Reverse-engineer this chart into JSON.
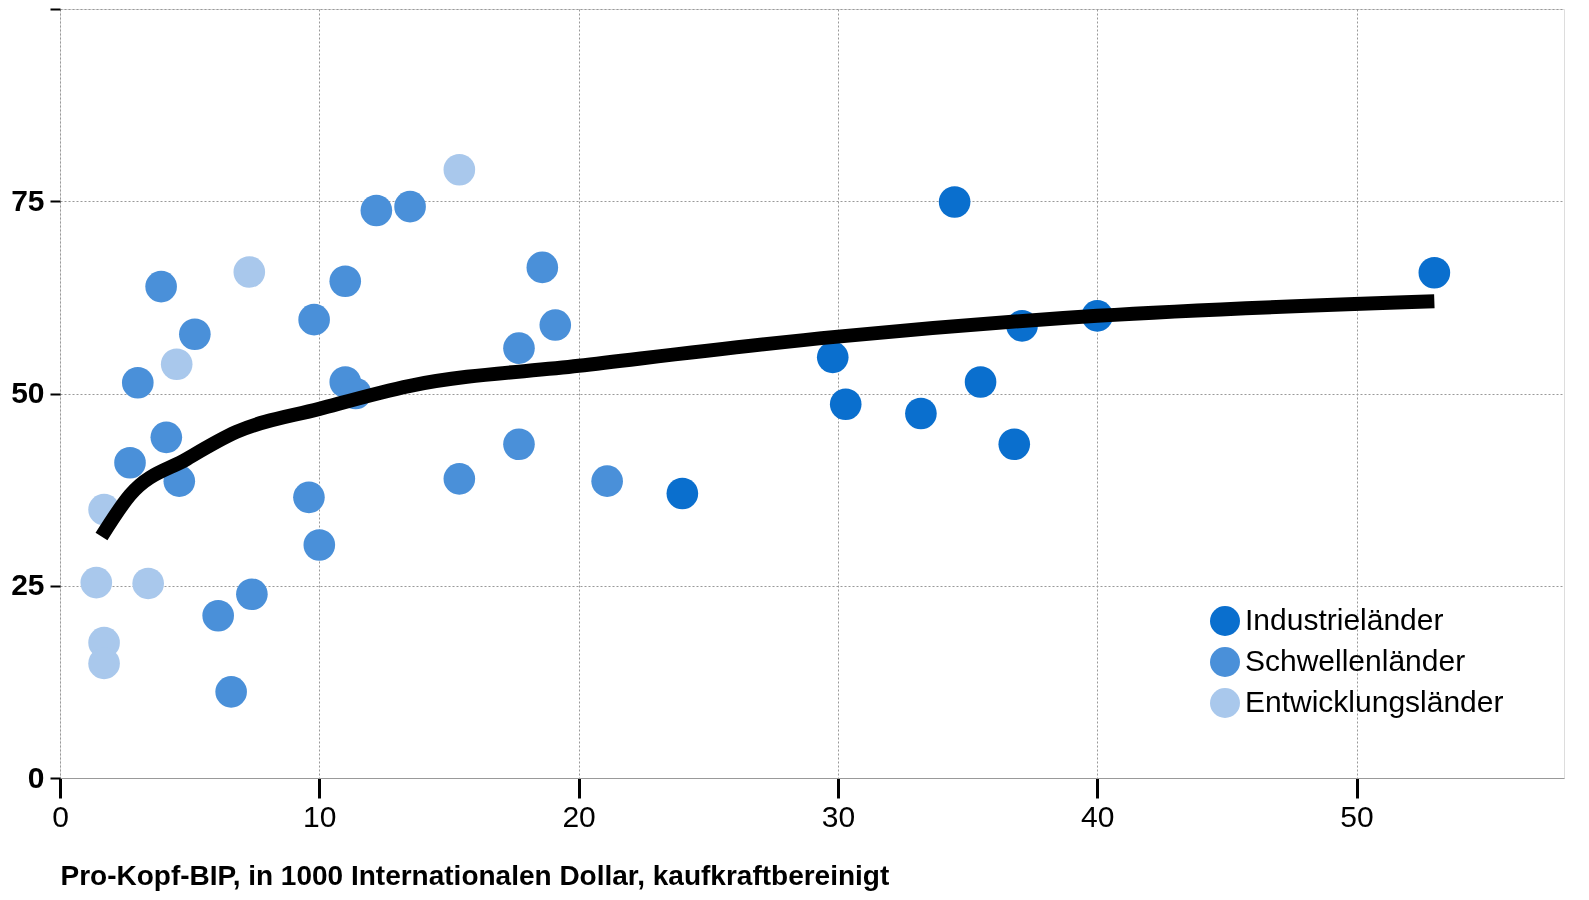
{
  "chart_data": {
    "type": "scatter",
    "xlabel": "Pro-Kopf-BIP, in 1000 Internationalen Dollar, kaufkraftbereinigt",
    "xlim": [
      0,
      58
    ],
    "xticks": [
      0,
      10,
      20,
      30,
      40,
      50
    ],
    "ylim": [
      0,
      100
    ],
    "yticks": [
      0,
      25,
      50,
      75,
      {
        "value": 100,
        "label": null
      }
    ],
    "grid": true,
    "legend": "bottom right",
    "marker": "circle",
    "series": [
      {
        "name": "Industrieländer",
        "color": "#0a6fce",
        "x": [
          34.5,
          53.0,
          40.0,
          37.1,
          29.8,
          35.5,
          30.3,
          33.2,
          36.8,
          24.0
        ],
        "values": [
          74.9,
          65.7,
          60.1,
          58.8,
          54.7,
          51.5,
          48.6,
          47.4,
          43.4,
          37.0
        ]
      },
      {
        "name": "Schwellenländer",
        "color": "#4a90d9",
        "x": [
          12.2,
          13.5,
          3.9,
          11.0,
          18.6,
          9.8,
          19.1,
          5.2,
          17.7,
          3.0,
          11.0,
          11.4,
          4.1,
          2.7,
          4.6,
          17.7,
          15.4,
          21.1,
          9.6,
          10.0,
          7.4,
          6.1,
          6.6
        ],
        "values": [
          73.8,
          74.3,
          63.9,
          64.6,
          66.4,
          59.6,
          58.9,
          57.7,
          55.9,
          51.4,
          51.5,
          50.0,
          44.3,
          41.0,
          38.6,
          43.4,
          38.9,
          38.6,
          36.5,
          30.3,
          23.9,
          21.1,
          11.2
        ]
      },
      {
        "name": "Entwicklungsländer",
        "color": "#a9c8ec",
        "x": [
          15.4,
          7.3,
          4.5,
          1.7,
          1.4,
          3.4,
          1.7,
          1.7
        ],
        "values": [
          79.1,
          65.8,
          53.8,
          34.9,
          25.4,
          25.3,
          17.6,
          14.9
        ]
      },
      {
        "type": "line",
        "color": "#000000",
        "marker": "none",
        "x": [
          1.6,
          2.7,
          4.9,
          6.8,
          10,
          13.5,
          20,
          30,
          40,
          53
        ],
        "values": [
          31.4,
          36.8,
          41.5,
          45,
          48,
          51,
          53.6,
          57.4,
          60.1,
          62
        ]
      }
    ]
  }
}
